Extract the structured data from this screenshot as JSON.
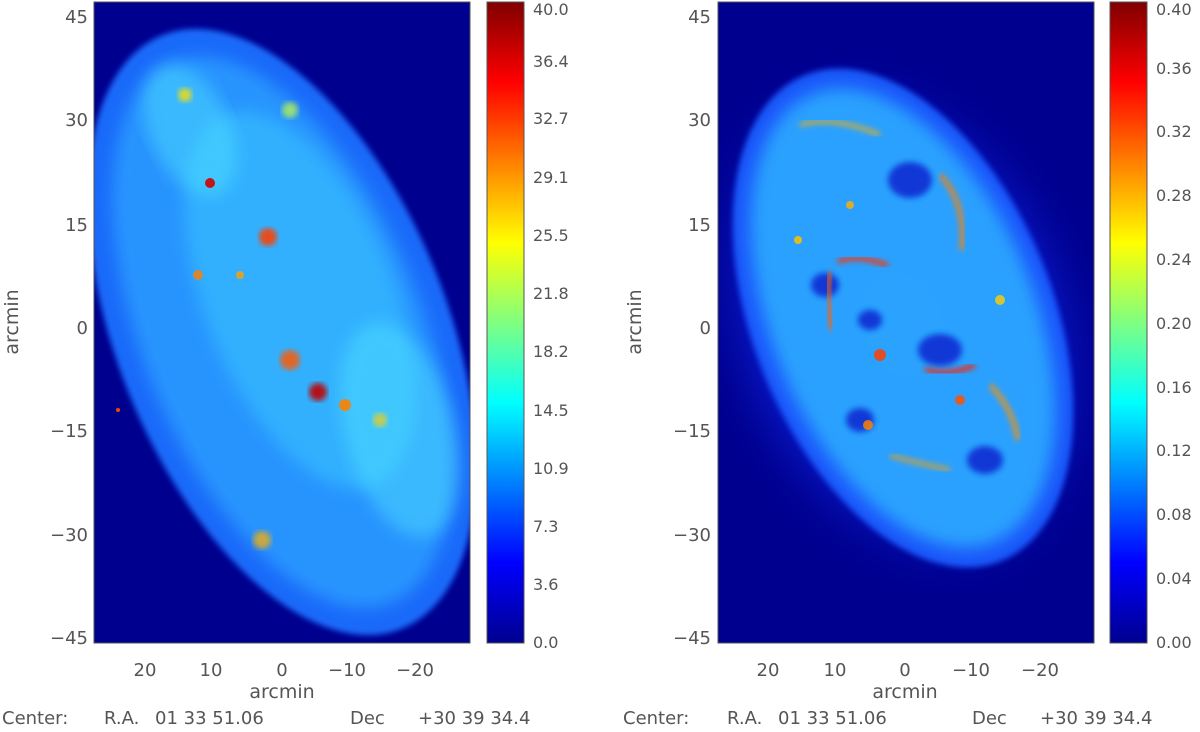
{
  "chart_data": [
    {
      "type": "heatmap",
      "title": "",
      "xlabel": "arcmin",
      "ylabel": "arcmin",
      "xlim": [
        28,
        -28
      ],
      "ylim": [
        -46,
        46
      ],
      "x_ticks": [
        "20",
        "10",
        "0",
        "−10",
        "−20"
      ],
      "x_tick_values": [
        20,
        10,
        0,
        -10,
        -20
      ],
      "y_ticks": [
        "45",
        "30",
        "15",
        "0",
        "−15",
        "−30",
        "−45"
      ],
      "y_tick_values": [
        45,
        30,
        15,
        0,
        -15,
        -30,
        -45
      ],
      "colorbar": {
        "min": 0,
        "max": 40,
        "ticks": [
          "40.0",
          "36.4",
          "32.7",
          "29.1",
          "25.5",
          "21.8",
          "18.2",
          "14.5",
          "10.9",
          "7.3",
          "3.6",
          "0.0"
        ]
      },
      "background_level": 0,
      "typical_level": 12,
      "peak_level": 40,
      "center_label": "Center:",
      "ra_label": "R.A.",
      "ra_value": "01 33 51.06",
      "dec_label": "Dec",
      "dec_value": "+30 39 34.4"
    },
    {
      "type": "heatmap",
      "title": "",
      "xlabel": "arcmin",
      "ylabel": "arcmin",
      "xlim": [
        28,
        -28
      ],
      "ylim": [
        -46,
        46
      ],
      "x_ticks": [
        "20",
        "10",
        "0",
        "−10",
        "−20"
      ],
      "x_tick_values": [
        20,
        10,
        0,
        -10,
        -20
      ],
      "y_ticks": [
        "45",
        "30",
        "15",
        "0",
        "−15",
        "−30",
        "−45"
      ],
      "y_tick_values": [
        45,
        30,
        15,
        0,
        -15,
        -30,
        -45
      ],
      "colorbar": {
        "min": 0,
        "max": 0.4,
        "ticks": [
          "0.40",
          "0.36",
          "0.32",
          "0.28",
          "0.24",
          "0.20",
          "0.16",
          "0.12",
          "0.08",
          "0.04",
          "0.00"
        ]
      },
      "background_level": 0,
      "typical_level": 0.12,
      "peak_level": 0.4,
      "center_label": "Center:",
      "ra_label": "R.A.",
      "ra_value": "01 33 51.06",
      "dec_label": "Dec",
      "dec_value": "+30 39 34.4"
    }
  ],
  "colormap": [
    "#00008f",
    "#0000ff",
    "#0080ff",
    "#00ffff",
    "#80ff80",
    "#ffff00",
    "#ff8000",
    "#ff0000",
    "#800000"
  ]
}
